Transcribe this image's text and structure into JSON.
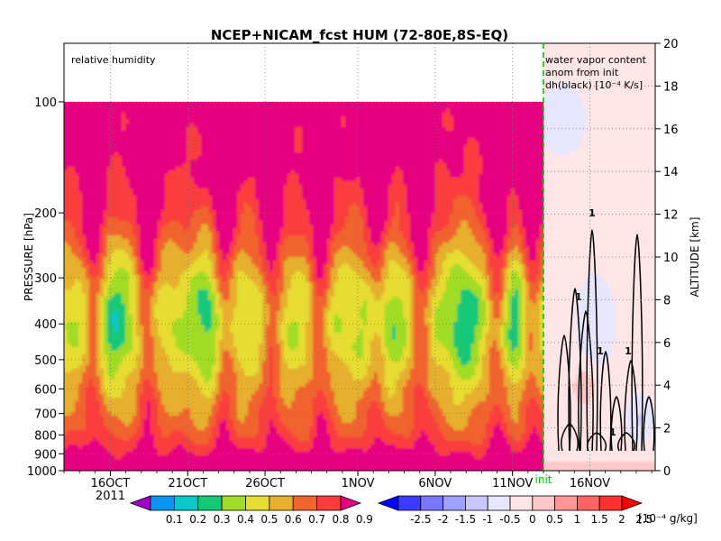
{
  "chart_data": {
    "type": "heatmap",
    "title": "NCEP+NICAM_fcst HUM (72-80E,8S-EQ)",
    "left_panel_label": "relative humidity",
    "right_panel_label_lines": [
      "water vapor content",
      "anom from init",
      "dh(black) [10⁻⁴ K/s]"
    ],
    "ylabel": "PRESSURE [hPa]",
    "ylabel_right": "ALTITUDE [km]",
    "pressure_ticks": [
      100,
      200,
      300,
      400,
      500,
      600,
      700,
      800,
      900,
      1000
    ],
    "pressure_tick_labels": [
      "100",
      "200",
      "300",
      "400",
      "500",
      "600",
      "700",
      "800",
      "900",
      "1000"
    ],
    "altitude_ticks": [
      0,
      2,
      4,
      6,
      8,
      10,
      12,
      14,
      16,
      18,
      20
    ],
    "altitude_tick_labels": [
      "0",
      "2",
      "4",
      "6",
      "8",
      "10",
      "12",
      "14",
      "16",
      "18",
      "20"
    ],
    "plevels_hpa": [
      1000,
      950,
      900,
      850,
      800,
      750,
      700,
      650,
      600,
      550,
      500,
      450,
      400,
      350,
      300,
      250,
      200,
      150,
      100
    ],
    "time_axis": {
      "start": "2011-10-13",
      "init": "2011-11-13",
      "end": "2011-11-21",
      "tick_dates": [
        "2011-10-16",
        "2011-10-21",
        "2011-10-26",
        "2011-11-01",
        "2011-11-06",
        "2011-11-11",
        "2011-11-16"
      ],
      "tick_labels": [
        "16OCT",
        "21OCT",
        "26OCT",
        "1NOV",
        "6NOV",
        "11NOV",
        "16NOV"
      ],
      "year_label": "2011",
      "init_label": "init"
    },
    "rh_colorbar": {
      "levels": [
        "0.1",
        "0.2",
        "0.3",
        "0.4",
        "0.5",
        "0.6",
        "0.7",
        "0.8",
        "0.9"
      ],
      "colors": [
        "#a000c8",
        "#0a96f0",
        "#0ac8c8",
        "#14c878",
        "#a0dc28",
        "#e6dc32",
        "#e6af2d",
        "#f0642d",
        "#fa3c3c",
        "#e6007f"
      ]
    },
    "anom_colorbar": {
      "levels": [
        "-2.5",
        "-2",
        "-1.5",
        "-1",
        "-0.5",
        "0",
        "0.5",
        "1",
        "1.5",
        "2",
        "2.5"
      ],
      "unit": "[10⁻⁴ g/kg]",
      "colors": [
        "#0000ff",
        "#3c3cff",
        "#7878ff",
        "#a0a0ff",
        "#c8c8ff",
        "#e6e6ff",
        "#ffe6e6",
        "#ffc8c8",
        "#ff9696",
        "#ff6464",
        "#ff3232",
        "#ff0000"
      ]
    },
    "dh_contour_label": "1"
  }
}
